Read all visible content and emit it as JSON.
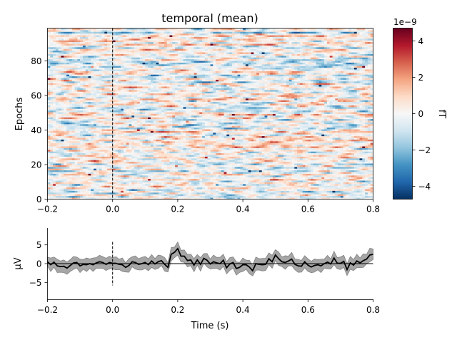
{
  "chart_data": [
    {
      "type": "heatmap",
      "title": "temporal (mean)",
      "xlabel": "",
      "ylabel": "Epochs",
      "xlim": [
        -0.2,
        0.8
      ],
      "ylim": [
        0,
        99
      ],
      "x_ticks": [
        "−0.2",
        "0.0",
        "0.2",
        "0.4",
        "0.6",
        "0.8"
      ],
      "y_ticks": [
        "0",
        "20",
        "40",
        "60",
        "80"
      ],
      "n_epochs": 100,
      "n_times": 120,
      "event_marker_x": 0.0,
      "colormap": "RdBu_r",
      "colorbar": {
        "label": "fT",
        "exponent": "1e−9",
        "range": [
          -4.7e-09,
          4.7e-09
        ],
        "ticks": [
          "−4",
          "−2",
          "0",
          "2",
          "4"
        ]
      },
      "note_values": "single-trial image; individual cell values are noise-like and not individually recoverable — rendered procedurally"
    },
    {
      "type": "line",
      "title": "",
      "xlabel": "Time (s)",
      "ylabel": "µV",
      "xlim": [
        -0.2,
        0.8
      ],
      "ylim": [
        -9.5,
        9.5
      ],
      "x_ticks": [
        "−0.2",
        "0.0",
        "0.2",
        "0.4",
        "0.6",
        "0.8"
      ],
      "y_ticks": [
        "−5",
        "0",
        "5"
      ],
      "event_marker_x": 0.0,
      "series": [
        {
          "x": [
            -0.2,
            -0.19,
            -0.18,
            -0.17,
            -0.16,
            -0.15,
            -0.14,
            -0.13,
            -0.12,
            -0.11,
            -0.1,
            -0.09,
            -0.08,
            -0.07,
            -0.06,
            -0.05,
            -0.04,
            -0.03,
            -0.02,
            -0.01,
            0.0,
            0.01,
            0.02,
            0.03,
            0.04,
            0.05,
            0.06,
            0.07,
            0.08,
            0.09,
            0.1,
            0.11,
            0.12,
            0.13,
            0.14,
            0.15,
            0.16,
            0.17,
            0.18,
            0.19,
            0.2,
            0.21,
            0.22,
            0.23,
            0.24,
            0.25,
            0.26,
            0.27,
            0.28,
            0.29,
            0.3,
            0.31,
            0.32,
            0.33,
            0.34,
            0.35,
            0.36,
            0.37,
            0.38,
            0.39,
            0.4,
            0.41,
            0.42,
            0.43,
            0.44,
            0.45,
            0.46,
            0.47,
            0.48,
            0.49,
            0.5,
            0.51,
            0.52,
            0.53,
            0.54,
            0.55,
            0.56,
            0.57,
            0.58,
            0.59,
            0.6,
            0.61,
            0.62,
            0.63,
            0.64,
            0.65,
            0.66,
            0.67,
            0.68,
            0.69,
            0.7,
            0.71,
            0.72,
            0.73,
            0.74,
            0.75,
            0.76,
            0.77,
            0.78,
            0.79,
            0.8
          ],
          "y": [
            0.5,
            -0.3,
            0.4,
            -0.6,
            -0.8,
            -0.7,
            -1.2,
            -0.5,
            0.2,
            0.3,
            -0.6,
            -0.2,
            -0.3,
            0.0,
            -0.3,
            0.2,
            0.5,
            0.3,
            -0.2,
            0.3,
            0.1,
            0.1,
            -0.2,
            -0.3,
            -1.0,
            -0.5,
            0.5,
            0.3,
            -0.2,
            0.0,
            0.3,
            -0.3,
            0.7,
            -0.1,
            0.5,
            0.8,
            -0.2,
            -1.0,
            2.5,
            3.0,
            4.0,
            2.0,
            2.0,
            0.8,
            1.0,
            -0.4,
            1.0,
            -0.2,
            1.4,
            0.9,
            -0.1,
            0.5,
            0.2,
            0.0,
            0.9,
            -1.1,
            -0.1,
            0.3,
            -1.3,
            -1.0,
            -0.3,
            -0.3,
            -0.9,
            -1.9,
            0.0,
            -0.2,
            -0.3,
            -0.2,
            1.3,
            0.5,
            2.3,
            1.3,
            0.5,
            0.3,
            0.7,
            1.2,
            -0.2,
            -0.6,
            -0.7,
            0.5,
            -0.4,
            -0.9,
            -0.5,
            -0.3,
            -0.6,
            0.0,
            0.4,
            -0.1,
            1.5,
            0.1,
            0.1,
            0.6,
            -1.6,
            0.2,
            -0.4,
            0.7,
            0.2,
            0.8,
            1.2,
            2.3,
            2.5
          ]
        }
      ]
    }
  ]
}
